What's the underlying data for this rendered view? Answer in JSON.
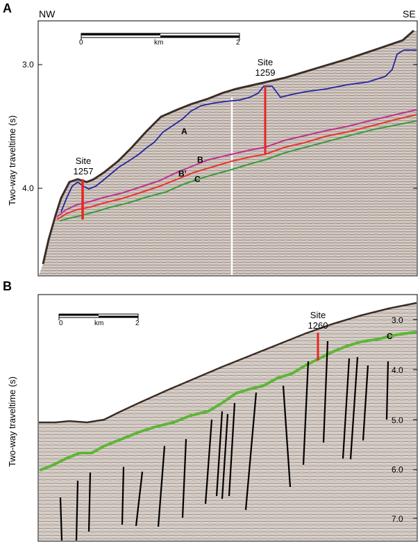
{
  "panel_a": {
    "letter": "A",
    "dir_left": "NW",
    "dir_right": "SE",
    "ylabel": "Two-way traveltime (s)",
    "yticks": [
      "3.0",
      "4.0"
    ],
    "scale": {
      "start": "0",
      "unit": "km",
      "end": "2"
    },
    "sites": [
      {
        "line1": "Site",
        "line2": "1257"
      },
      {
        "line1": "Site",
        "line2": "1259"
      }
    ],
    "horizons": [
      "A",
      "B",
      "B'",
      "C"
    ],
    "colors": {
      "A": "#2323a0",
      "B": "#c0308a",
      "B_prime": "#e8352a",
      "C": "#3a9a3a",
      "site": "#e8251f"
    }
  },
  "panel_b": {
    "letter": "B",
    "ylabel": "Two-way traveltime (s)",
    "yticks": [
      "3.0",
      "4.0",
      "5.0",
      "6.0",
      "7.0"
    ],
    "scale": {
      "start": "0",
      "unit": "km",
      "end": "2"
    },
    "site": {
      "line1": "Site",
      "line2": "1260"
    },
    "horizon": "C",
    "colors": {
      "C": "#5fb538",
      "site": "#e8251f",
      "faults": "#000000"
    }
  }
}
